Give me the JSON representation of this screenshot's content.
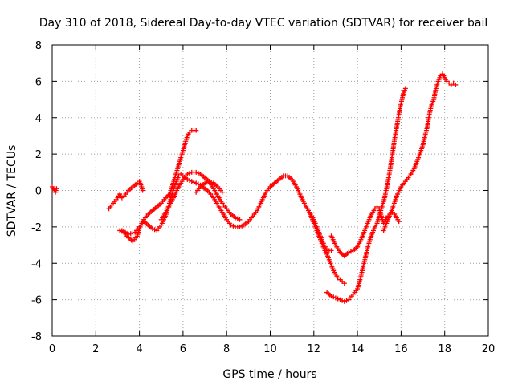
{
  "chart_data": {
    "type": "scatter",
    "title": "Day 310 of 2018, Sidereal Day-to-day VTEC variation (SDTVAR) for receiver bail",
    "xlabel": "GPS time / hours",
    "ylabel": "SDTVAR / TECUs",
    "xlim": [
      0,
      20
    ],
    "ylim": [
      -8,
      8
    ],
    "x_ticks": [
      0,
      2,
      4,
      6,
      8,
      10,
      12,
      14,
      16,
      18,
      20
    ],
    "y_ticks": [
      -8,
      -6,
      -4,
      -2,
      0,
      2,
      4,
      6,
      8
    ],
    "grid": true,
    "marker": "+",
    "color": "#ff0000",
    "series": [
      {
        "x": [
          0.0,
          0.05,
          0.1,
          0.15,
          0.2
        ],
        "y": [
          0.2,
          0.1,
          0.0,
          -0.1,
          0.1
        ]
      },
      {
        "x": [
          2.6,
          2.8,
          3.0,
          3.1,
          3.2,
          3.3,
          3.5,
          3.7,
          3.9,
          4.0,
          4.1,
          4.15
        ],
        "y": [
          -1.0,
          -0.7,
          -0.4,
          -0.2,
          -0.4,
          -0.3,
          0.0,
          0.2,
          0.4,
          0.5,
          0.2,
          0.0
        ]
      },
      {
        "x": [
          3.1,
          3.3,
          3.5,
          3.7,
          3.9,
          4.0,
          4.1,
          4.2,
          4.4,
          4.6,
          4.8,
          5.0,
          5.2,
          5.4,
          5.5,
          5.6,
          5.7,
          5.8,
          5.9,
          6.0,
          6.1,
          6.2,
          6.3,
          6.4,
          6.6
        ],
        "y": [
          -2.2,
          -2.3,
          -2.6,
          -2.8,
          -2.5,
          -2.1,
          -1.8,
          -1.6,
          -1.3,
          -1.1,
          -0.9,
          -0.7,
          -0.4,
          -0.2,
          0.2,
          0.6,
          1.0,
          1.4,
          1.8,
          2.2,
          2.6,
          3.0,
          3.2,
          3.3,
          3.3
        ]
      },
      {
        "x": [
          3.2,
          3.5,
          3.8,
          4.0,
          4.2,
          4.4,
          4.6,
          4.8,
          5.0,
          5.2,
          5.3,
          5.4,
          5.5,
          5.6,
          5.7,
          5.8,
          5.9,
          6.0,
          6.2,
          6.4,
          6.6,
          6.8,
          7.0,
          7.2,
          7.4,
          7.6,
          7.8,
          8.0,
          8.2,
          8.4,
          8.6,
          8.8,
          9.0,
          9.2,
          9.4,
          9.6,
          9.8,
          10.0,
          10.2,
          10.4,
          10.6,
          10.8,
          11.0,
          11.2,
          11.4,
          11.6,
          11.8,
          12.0,
          12.2,
          12.4,
          12.6,
          12.8
        ],
        "y": [
          -2.2,
          -2.4,
          -2.3,
          -2.0,
          -1.7,
          -1.9,
          -2.1,
          -2.2,
          -1.9,
          -1.4,
          -1.0,
          -0.6,
          -0.2,
          0.2,
          0.5,
          0.8,
          0.9,
          0.8,
          0.6,
          0.5,
          0.4,
          0.3,
          0.1,
          -0.1,
          -0.4,
          -0.8,
          -1.2,
          -1.6,
          -1.9,
          -2.0,
          -2.0,
          -1.9,
          -1.7,
          -1.4,
          -1.1,
          -0.6,
          -0.1,
          0.2,
          0.4,
          0.6,
          0.8,
          0.8,
          0.6,
          0.2,
          -0.3,
          -0.8,
          -1.2,
          -1.6,
          -2.2,
          -2.8,
          -3.3,
          -3.3
        ]
      },
      {
        "x": [
          5.0,
          5.2,
          5.4,
          5.6,
          5.8,
          6.0,
          6.2,
          6.4,
          6.6,
          6.8,
          7.0,
          7.2,
          7.4,
          7.6,
          7.8,
          8.0,
          8.2,
          8.4,
          8.6
        ],
        "y": [
          -1.6,
          -1.2,
          -0.8,
          -0.3,
          0.2,
          0.6,
          0.9,
          1.0,
          1.0,
          0.9,
          0.7,
          0.5,
          0.1,
          -0.3,
          -0.7,
          -1.0,
          -1.3,
          -1.5,
          -1.6
        ]
      },
      {
        "x": [
          6.6,
          6.8,
          7.0,
          7.2,
          7.4,
          7.6,
          7.8
        ],
        "y": [
          -0.1,
          0.2,
          0.4,
          0.5,
          0.4,
          0.2,
          -0.1
        ]
      },
      {
        "x": [
          11.8,
          12.0,
          12.2,
          12.4,
          12.5,
          12.6,
          12.7,
          12.8,
          12.9,
          13.0,
          13.1,
          13.2,
          13.3,
          13.4
        ],
        "y": [
          -1.2,
          -1.8,
          -2.4,
          -3.0,
          -3.3,
          -3.5,
          -3.8,
          -4.1,
          -4.4,
          -4.6,
          -4.8,
          -4.9,
          -5.0,
          -5.1
        ]
      },
      {
        "x": [
          12.6,
          12.8,
          13.0,
          13.2,
          13.4,
          13.6,
          13.8,
          14.0,
          14.1,
          14.2,
          14.3,
          14.4,
          14.5,
          14.6,
          14.7,
          14.8,
          14.9,
          15.0,
          15.1,
          15.2,
          15.3,
          15.4,
          15.5,
          15.6,
          15.7,
          15.8,
          15.9,
          16.0,
          16.1,
          16.2
        ],
        "y": [
          -5.6,
          -5.8,
          -5.9,
          -6.0,
          -6.1,
          -6.0,
          -5.7,
          -5.4,
          -5.0,
          -4.5,
          -4.0,
          -3.5,
          -3.0,
          -2.6,
          -2.3,
          -2.0,
          -1.8,
          -1.4,
          -1.0,
          -0.6,
          -0.1,
          0.5,
          1.2,
          2.0,
          2.8,
          3.5,
          4.2,
          4.8,
          5.3,
          5.6
        ]
      },
      {
        "x": [
          12.8,
          13.0,
          13.2,
          13.4,
          13.6,
          13.8,
          14.0,
          14.2,
          14.4,
          14.6,
          14.8,
          14.9,
          15.0,
          15.1,
          15.2,
          15.3,
          15.4,
          15.5,
          15.6,
          15.7,
          15.8,
          15.9
        ],
        "y": [
          -2.5,
          -3.0,
          -3.4,
          -3.6,
          -3.4,
          -3.3,
          -3.1,
          -2.6,
          -2.0,
          -1.4,
          -1.0,
          -0.9,
          -1.0,
          -1.4,
          -1.8,
          -1.6,
          -1.4,
          -1.3,
          -1.2,
          -1.3,
          -1.5,
          -1.7
        ]
      },
      {
        "x": [
          15.2,
          15.4,
          15.6,
          15.8,
          16.0,
          16.2,
          16.4,
          16.6,
          16.8,
          17.0,
          17.2,
          17.3,
          17.4,
          17.5,
          17.6,
          17.7,
          17.8,
          17.9,
          18.0,
          18.1,
          18.2,
          18.3,
          18.4,
          18.5
        ],
        "y": [
          -2.2,
          -1.6,
          -1.0,
          -0.3,
          0.2,
          0.5,
          0.8,
          1.2,
          1.8,
          2.5,
          3.5,
          4.2,
          4.7,
          5.0,
          5.6,
          6.0,
          6.3,
          6.4,
          6.2,
          6.0,
          5.9,
          5.8,
          5.9,
          5.8
        ]
      }
    ]
  }
}
